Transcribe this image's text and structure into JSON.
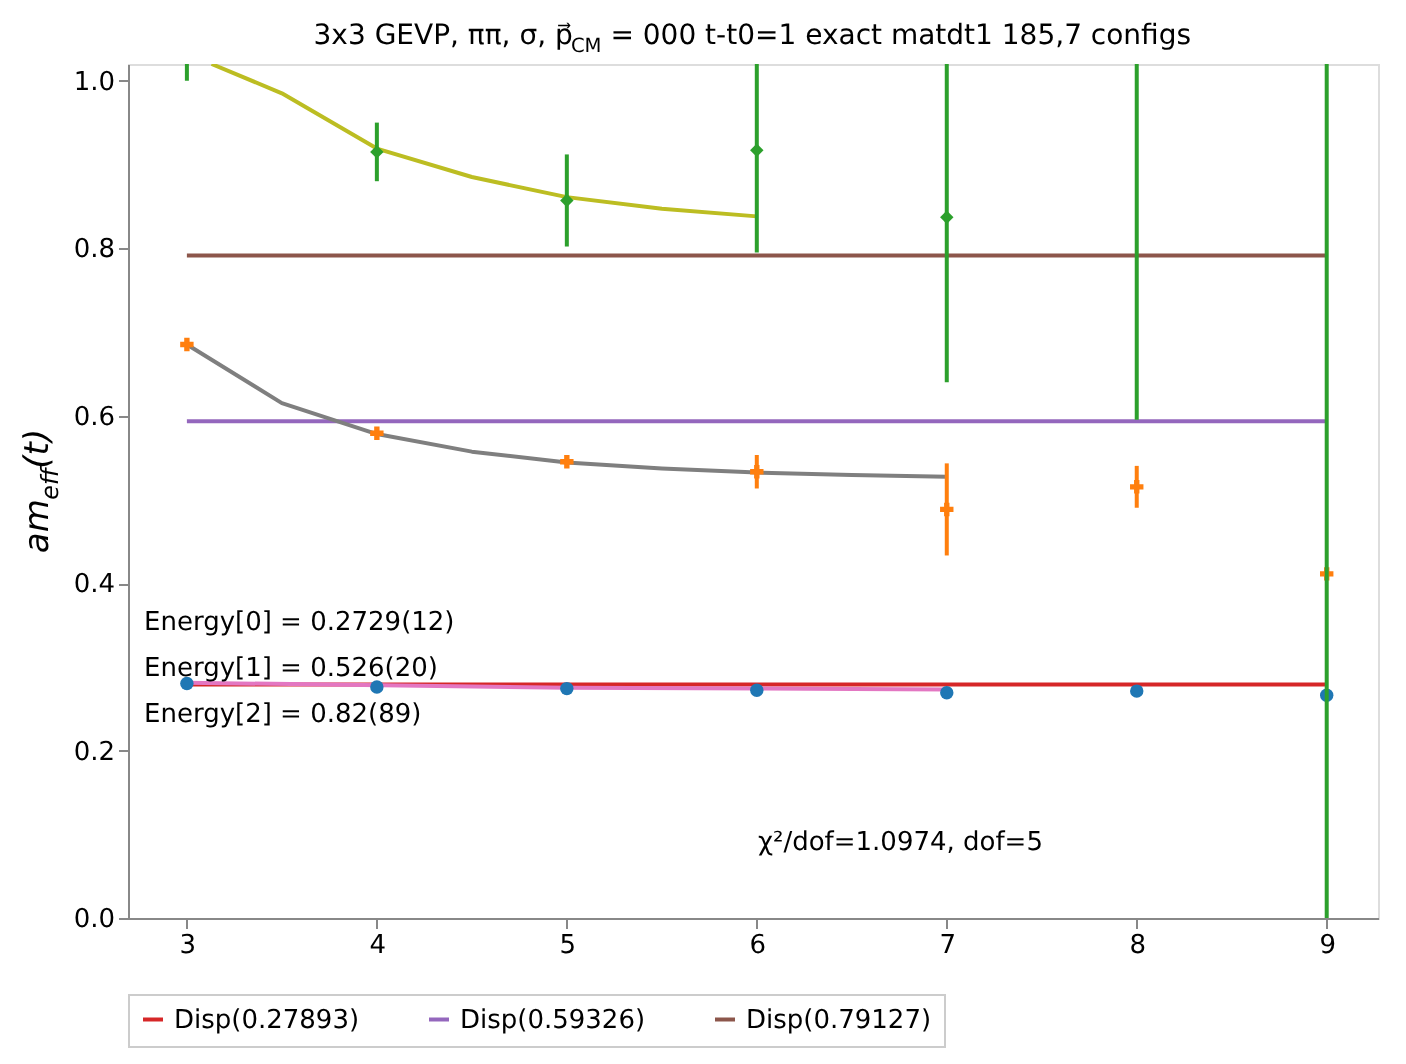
{
  "chart_data": {
    "type": "scatter",
    "title": "3x3 GEVP, ππ, σ, p⃗$_{CM}$ = 000 t-t0=1 exact matdt1 185,7 configs",
    "ylabel": "am$_{eff}$(t)",
    "x": [
      3,
      4,
      5,
      6,
      7,
      8,
      9
    ],
    "series": [
      {
        "type": "line",
        "name": "Disp(0.27893)",
        "color": "#d62728",
        "x": [
          3,
          9
        ],
        "values": [
          0.27893,
          0.27893
        ]
      },
      {
        "type": "line",
        "name": "Disp(0.59326)",
        "color": "#9467bd",
        "x": [
          3,
          9
        ],
        "values": [
          0.59326,
          0.59326
        ]
      },
      {
        "type": "line",
        "name": "Disp(0.79127)",
        "color": "#8c564b",
        "x": [
          3,
          9
        ],
        "values": [
          0.79127,
          0.79127
        ]
      },
      {
        "type": "line",
        "color": "#e377c2",
        "x": [
          3,
          5,
          7
        ],
        "values": [
          0.281,
          0.275,
          0.273
        ]
      },
      {
        "type": "line",
        "color": "#7f7f7f",
        "x": [
          3,
          3.5,
          4,
          4.5,
          5,
          5.5,
          6,
          6.5,
          7
        ],
        "values": [
          0.685,
          0.615,
          0.578,
          0.557,
          0.544,
          0.537,
          0.532,
          0.529,
          0.527
        ]
      },
      {
        "type": "line",
        "color": "#bcbd22",
        "x": [
          3.13,
          3.5,
          4,
          4.5,
          5,
          5.5,
          6
        ],
        "values": [
          1.02,
          0.985,
          0.919,
          0.885,
          0.861,
          0.847,
          0.838
        ]
      },
      {
        "marker": "circle",
        "color": "#1f77b4",
        "values": [
          0.28,
          0.276,
          0.274,
          0.272,
          0.269,
          0.271,
          0.266
        ]
      },
      {
        "marker": "cross",
        "color": "#ff7f0e",
        "values": [
          0.685,
          0.579,
          0.545,
          0.533,
          0.488,
          0.515,
          0.411
        ],
        "errors": [
          null,
          null,
          null,
          0.02,
          0.055,
          0.025,
          null
        ]
      },
      {
        "marker": "diamond",
        "color": "#2ca02c",
        "values": [
          null,
          0.915,
          0.857,
          0.917,
          0.837,
          null,
          null
        ],
        "errors": [
          null,
          0.035,
          0.055,
          null,
          null,
          null,
          null
        ]
      },
      {
        "type": "bar",
        "color": "#2ca02c",
        "x": [
          3,
          6,
          7,
          8,
          9
        ],
        "base": [
          1.0,
          0.795,
          0.64,
          0.595,
          0.0
        ],
        "values": [
          0.02,
          0.225,
          0.38,
          0.425,
          1.02
        ]
      }
    ],
    "xlim": [
      2.69,
      9.27
    ],
    "xticks": [
      3,
      4,
      5,
      6,
      7,
      8,
      9
    ],
    "ylim": [
      0,
      1.02
    ],
    "yticks": [
      {
        "value": 0,
        "label": "0.0"
      },
      0.2,
      0.4,
      0.6,
      0.8,
      {
        "value": 1,
        "label": "1.0"
      }
    ],
    "annotations": [
      "Energy[0] = 0.2729(12)",
      "Energy[1] = 0.526(20)",
      "Energy[2] = 0.82(89)",
      "χ²/dof=1.0974, dof=5"
    ],
    "grid": false,
    "legend": "bottom"
  }
}
